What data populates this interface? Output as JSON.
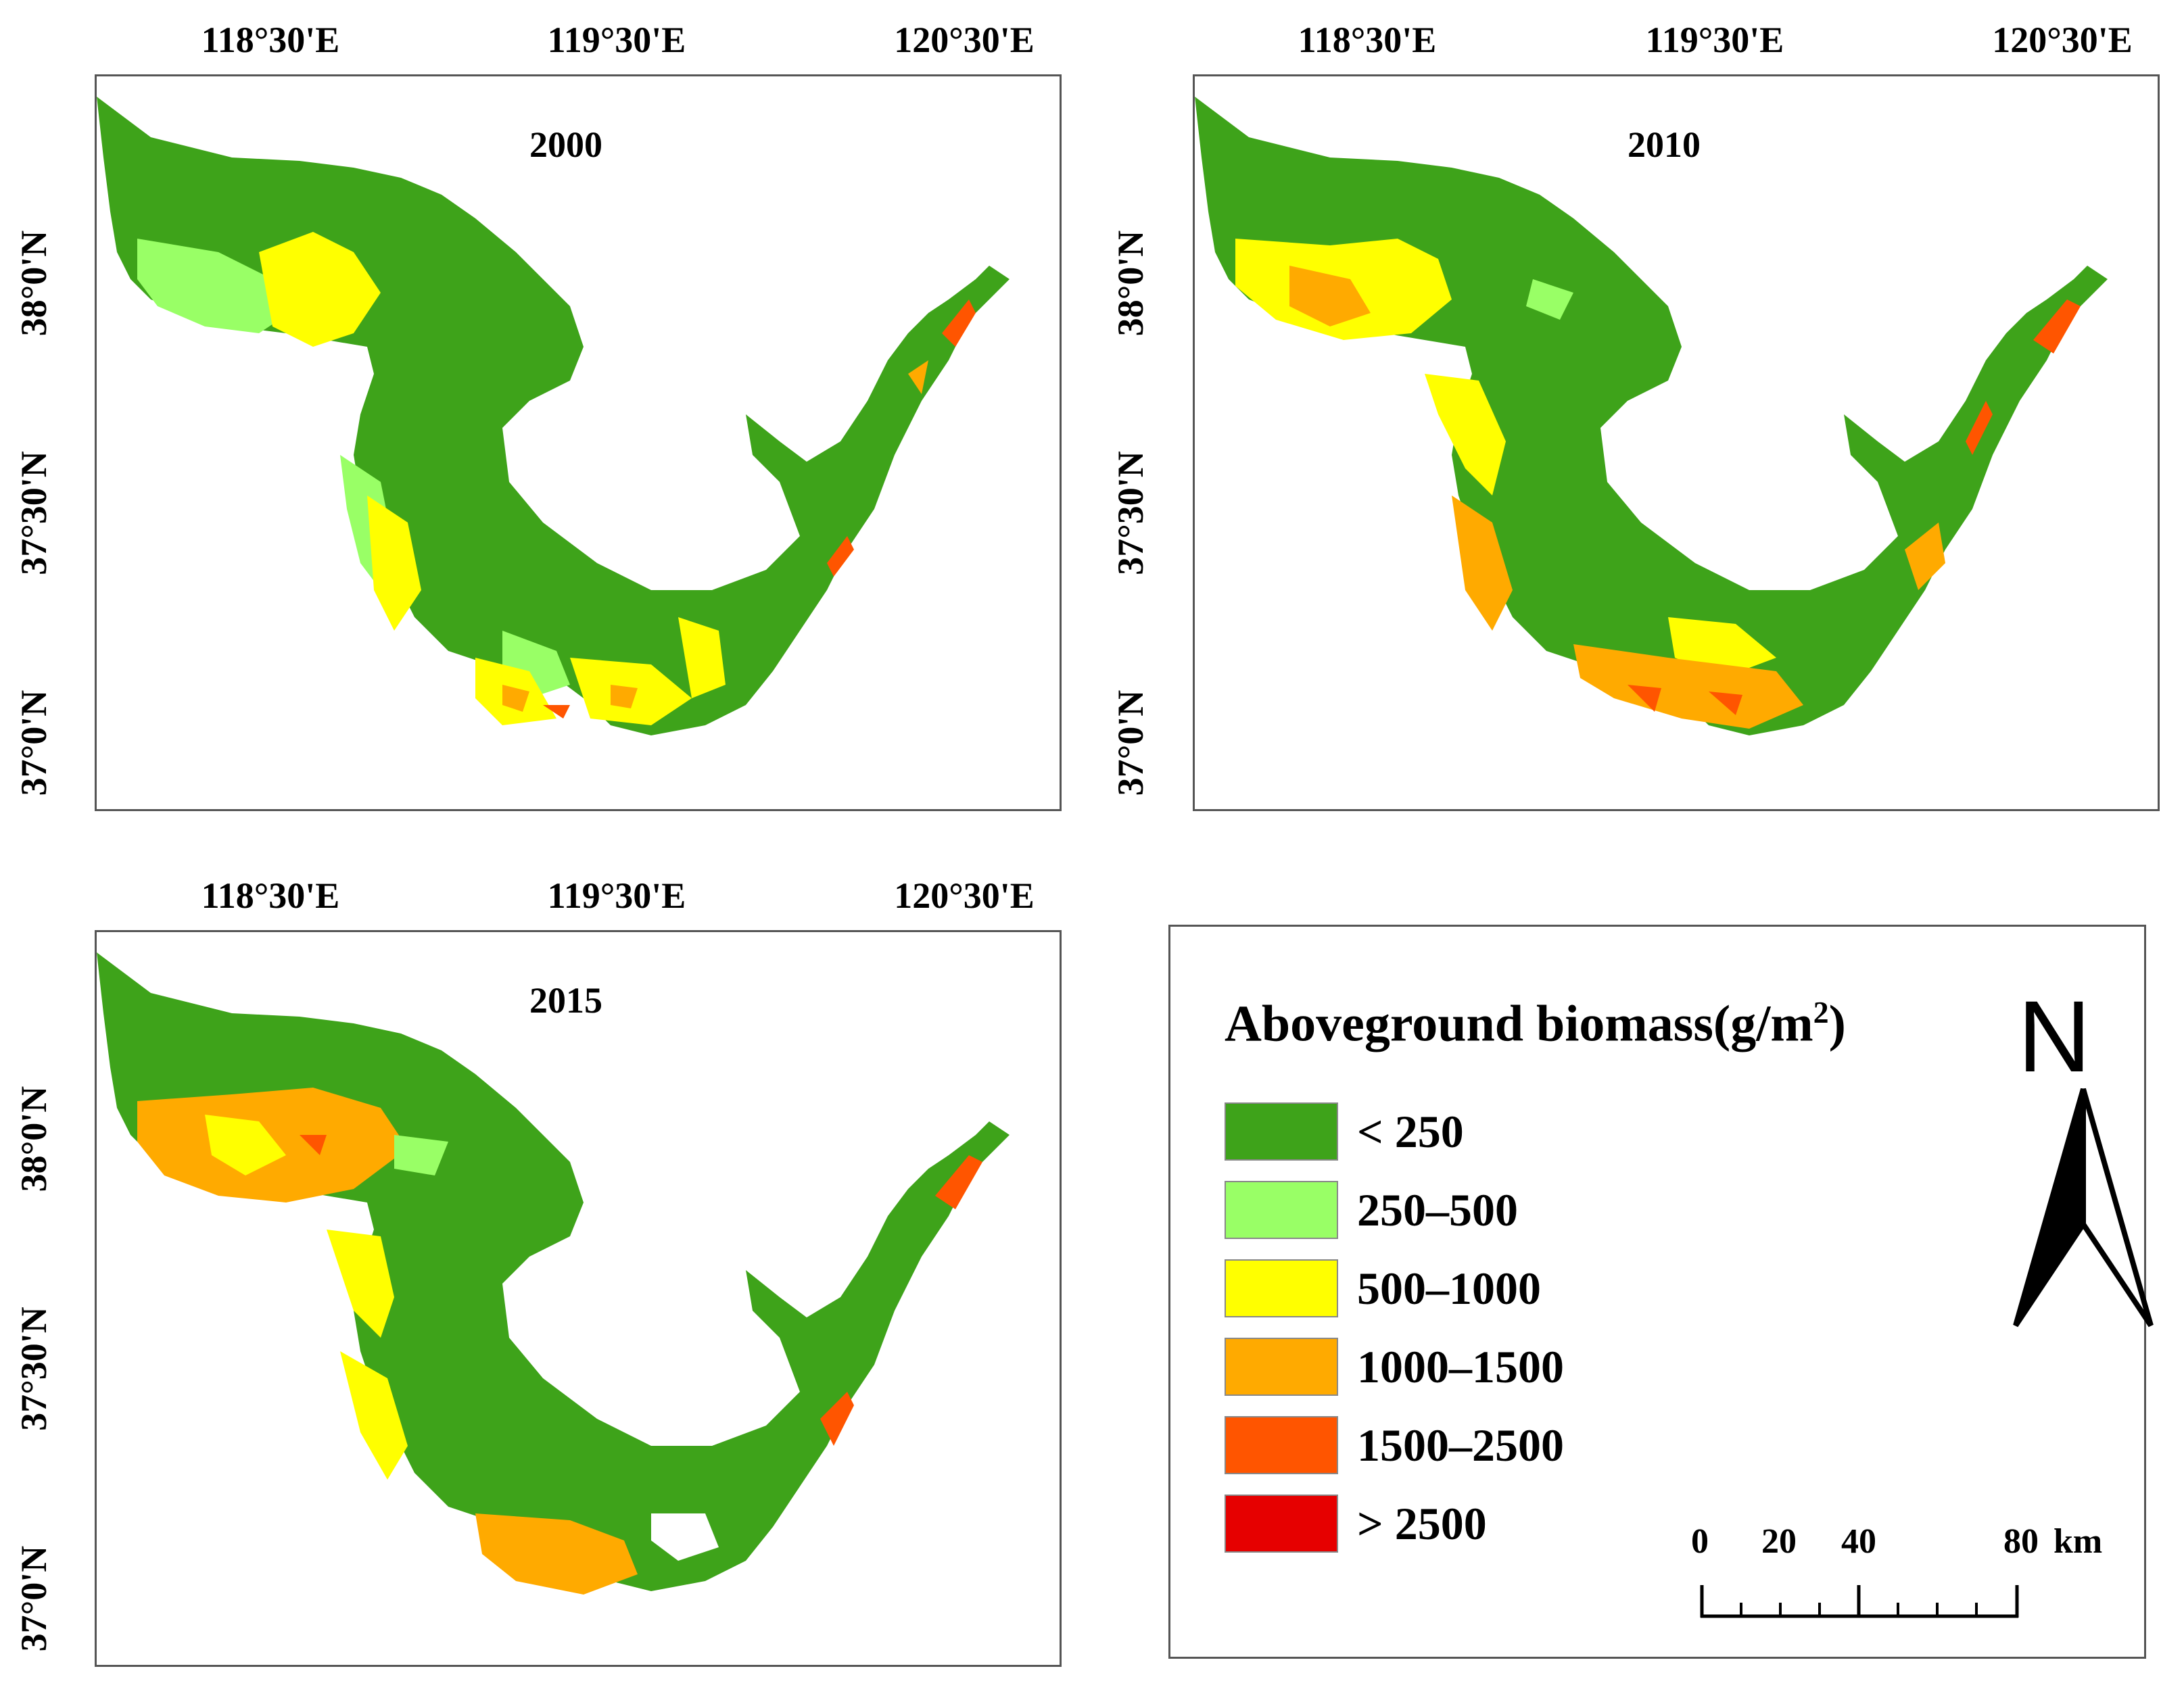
{
  "maps": [
    {
      "year": "2000",
      "lon_labels": [
        "118°30'E",
        "119°30'E",
        "120°30'E"
      ],
      "lat_labels": [
        "38°0'N",
        "37°30'N",
        "37°0'N"
      ]
    },
    {
      "year": "2010",
      "lon_labels": [
        "118°30'E",
        "119°30'E",
        "120°30'E"
      ],
      "lat_labels": [
        "38°0'N",
        "37°30'N",
        "37°0'N"
      ]
    },
    {
      "year": "2015",
      "lon_labels": [
        "118°30'E",
        "119°30'E",
        "120°30'E"
      ],
      "lat_labels": [
        "38°0'N",
        "37°30'N",
        "37°0'N"
      ]
    }
  ],
  "legend": {
    "title": "Aboveground biomass(g/m",
    "title_sup": "2",
    "title_end": ")",
    "classes": [
      {
        "label": "< 250",
        "color": "#3ea31a"
      },
      {
        "label": "250–500",
        "color": "#99ff66"
      },
      {
        "label": "500–1000",
        "color": "#ffff00"
      },
      {
        "label": "1000–1500",
        "color": "#ffaa00"
      },
      {
        "label": "1500–2500",
        "color": "#ff5500"
      },
      {
        "label": "> 2500",
        "color": "#e60000"
      }
    ]
  },
  "north_arrow": {
    "label": "N"
  },
  "scale_bar": {
    "ticks": [
      "0",
      "20",
      "40",
      "80"
    ],
    "unit": "km"
  },
  "colors": {
    "land": "#3ea31a",
    "light_green": "#99ff66",
    "yellow": "#ffff00",
    "orange": "#ffaa00",
    "red_orange": "#ff5500",
    "red": "#e60000"
  }
}
